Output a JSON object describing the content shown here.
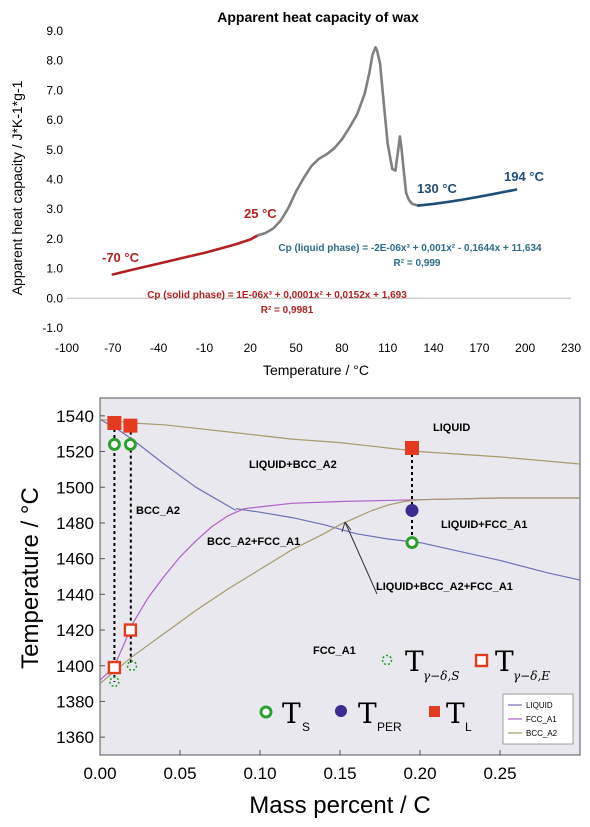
{
  "chart_data": [
    {
      "type": "line",
      "title": "Apparent heat capacity of wax",
      "xlabel": "Temperature / °C",
      "ylabel": "Apparent heat capacity / J*K-1*g-1",
      "xlim": [
        -100,
        230
      ],
      "ylim": [
        -1.0,
        9.0
      ],
      "xticks": [
        "-100",
        "-70",
        "-40",
        "-10",
        "20",
        "50",
        "80",
        "110",
        "140",
        "170",
        "200",
        "230"
      ],
      "yticks": [
        "-1.0",
        "0.0",
        "1.0",
        "2.0",
        "3.0",
        "4.0",
        "5.0",
        "6.0",
        "7.0",
        "8.0",
        "9.0"
      ],
      "grid": false,
      "legend": "none",
      "series": [
        {
          "segment": "solid",
          "color": "#b22222",
          "x": [
            -70,
            -60,
            -50,
            -40,
            -30,
            -20,
            -10,
            0,
            10,
            20,
            25
          ],
          "y": [
            0.8,
            0.93,
            1.05,
            1.17,
            1.29,
            1.41,
            1.53,
            1.67,
            1.81,
            1.98,
            2.12
          ]
        },
        {
          "segment": "transition",
          "color": "#808080",
          "x": [
            25,
            30,
            35,
            40,
            45,
            50,
            55,
            60,
            65,
            70,
            75,
            80,
            85,
            90,
            95,
            98,
            100,
            102,
            103,
            105,
            107,
            110,
            113,
            115,
            117,
            118,
            119,
            120,
            121,
            122,
            124,
            126,
            128,
            130
          ],
          "y": [
            2.12,
            2.2,
            2.35,
            2.62,
            3.05,
            3.6,
            4.05,
            4.45,
            4.7,
            4.85,
            5.05,
            5.35,
            5.75,
            6.2,
            6.9,
            7.6,
            8.2,
            8.45,
            8.35,
            7.9,
            6.8,
            5.2,
            4.35,
            4.3,
            5.05,
            5.45,
            5.05,
            4.55,
            4.05,
            3.55,
            3.3,
            3.18,
            3.15,
            3.12
          ]
        },
        {
          "segment": "liquid",
          "color": "#1f4e79",
          "x": [
            130,
            140,
            150,
            160,
            170,
            180,
            190,
            194
          ],
          "y": [
            3.12,
            3.18,
            3.25,
            3.33,
            3.42,
            3.52,
            3.62,
            3.66
          ]
        }
      ],
      "annotations": {
        "t_low": "-70 °C",
        "t_mid": "25 °C",
        "t_high1": "130 °C",
        "t_high2": "194 °C",
        "eq_liquid": "Cp (liquid phase) = -2E-06x³ + 0,001x² - 0,1644x + 11,634",
        "r2_liquid": "R² = 0,999",
        "eq_solid": "Cp (solid phase) = 1E-06x³ + 0,0001x² + 0,0152x + 1,693",
        "r2_solid": "R² = 0,9981"
      },
      "colors": {
        "solid": "#b22222",
        "transition": "#808080",
        "liquid": "#1f4e79",
        "eq_liquid": "#2e6b8a",
        "eq_solid": "#b22222"
      }
    },
    {
      "type": "line",
      "title": "",
      "xlabel": "Mass percent / C",
      "ylabel": "Temperature / °C",
      "xlim": [
        0.0,
        0.3
      ],
      "ylim": [
        1350,
        1550
      ],
      "xticks": [
        "0.00",
        "0.05",
        "0.10",
        "0.15",
        "0.20",
        "0.25"
      ],
      "yticks": [
        "1360",
        "1380",
        "1400",
        "1420",
        "1440",
        "1460",
        "1480",
        "1500",
        "1520",
        "1540"
      ],
      "grid": false,
      "legend": "bottom-right",
      "series": [
        {
          "name": "LIQUID",
          "color": "#6f6fb8",
          "x": [
            0.0,
            0.01,
            0.02,
            0.04,
            0.06,
            0.085
          ],
          "y": [
            1538,
            1533,
            1527,
            1513,
            1500,
            1487
          ]
        },
        {
          "name": "FCC_A1",
          "color": "#b060c8",
          "x": [
            0.0,
            0.005,
            0.01,
            0.015,
            0.02,
            0.03,
            0.04,
            0.05,
            0.06,
            0.07,
            0.08,
            0.09,
            0.1,
            0.12,
            0.15,
            0.2,
            0.25,
            0.3
          ],
          "y": [
            1392,
            1396,
            1402,
            1412,
            1423,
            1438,
            1450,
            1461,
            1470,
            1478,
            1484,
            1488,
            1489,
            1491,
            1492,
            1493,
            1494,
            1494
          ]
        },
        {
          "name": "BCC_A2",
          "color": "#a89a6a",
          "x": [
            0.0,
            0.01,
            0.02,
            0.04,
            0.06,
            0.08,
            0.1,
            0.12,
            0.15,
            0.17,
            0.2,
            0.25,
            0.3
          ],
          "y": [
            1538,
            1537,
            1536,
            1535,
            1533,
            1531,
            1529,
            1527,
            1525,
            1523,
            1520,
            1517,
            1513
          ]
        },
        {
          "name": "boundary_2",
          "color": "#6f6fb8",
          "x": [
            0.085,
            0.1,
            0.12,
            0.14,
            0.16,
            0.18,
            0.2,
            0.22,
            0.25,
            0.28,
            0.3
          ],
          "y": [
            1488,
            1486,
            1483,
            1479,
            1474,
            1471,
            1469,
            1465,
            1459,
            1452,
            1448
          ]
        },
        {
          "name": "boundary_3",
          "color": "#a89a6a",
          "x": [
            0.0,
            0.02,
            0.04,
            0.06,
            0.08,
            0.1,
            0.12,
            0.14,
            0.15,
            0.16,
            0.17,
            0.18,
            0.19,
            0.2,
            0.25,
            0.3
          ],
          "y": [
            1390,
            1405,
            1418,
            1431,
            1443,
            1454,
            1465,
            1474,
            1479,
            1483,
            1487,
            1490,
            1492,
            1493,
            1494,
            1494
          ]
        }
      ],
      "points": {
        "TL": [
          [
            0.009,
            1536
          ],
          [
            0.019,
            1534.5
          ],
          [
            0.195,
            1522
          ]
        ],
        "TS": [
          [
            0.009,
            1524
          ],
          [
            0.019,
            1524
          ],
          [
            0.195,
            1469
          ]
        ],
        "TPER": [
          [
            0.195,
            1487
          ]
        ],
        "TgdE": [
          [
            0.009,
            1399
          ],
          [
            0.019,
            1420
          ]
        ],
        "TgdS": [
          [
            0.009,
            1391
          ],
          [
            0.02,
            1400
          ]
        ]
      },
      "phase_labels": {
        "liquid": "LIQUID",
        "liquid_bcc": "LIQUID+BCC_A2",
        "bcc": "BCC_A2",
        "bcc_fcc": "BCC_A2+FCC_A1",
        "liquid_fcc": "LIQUID+FCC_A1",
        "liquid_bcc_fcc": "LIQUID+BCC_A2+FCC_A1",
        "fcc": "FCC_A1"
      },
      "symbol_labels": {
        "TgdS_main": "T",
        "TgdS_sub": "γ−δ,S",
        "TgdE_main": "T",
        "TgdE_sub": "γ−δ,E",
        "TS_main": "T",
        "TS_sub": "S",
        "TPER_main": "T",
        "TPER_sub": "PER",
        "TL_main": "T",
        "TL_sub": "L"
      },
      "legend_entries": [
        "LIQUID",
        "FCC_A1",
        "BCC_A2"
      ],
      "colors": {
        "TL": "#e23b1f",
        "TS": "#2ca02c",
        "TPER": "#3b2d8f",
        "TgdE": "#e23b1f",
        "TgdS": "#2ca02c",
        "plot_bg": "#e8e8ee"
      }
    }
  ]
}
